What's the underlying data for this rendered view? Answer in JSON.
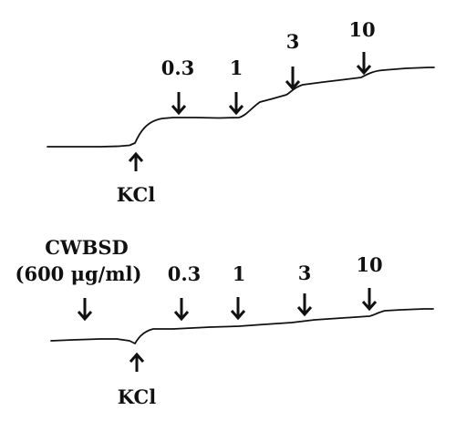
{
  "panel_top": {
    "kcl_label": "KCl",
    "doses": [
      "0.3",
      "1",
      "3",
      "10"
    ]
  },
  "panel_bottom": {
    "pretreatment_line1": "CWBSD",
    "pretreatment_line2": "(600 μg/ml)",
    "kcl_label": "KCl",
    "doses": [
      "0.3",
      "1",
      "3",
      "10"
    ]
  },
  "colors": {
    "ink": "#111111",
    "background": "#ffffff"
  }
}
